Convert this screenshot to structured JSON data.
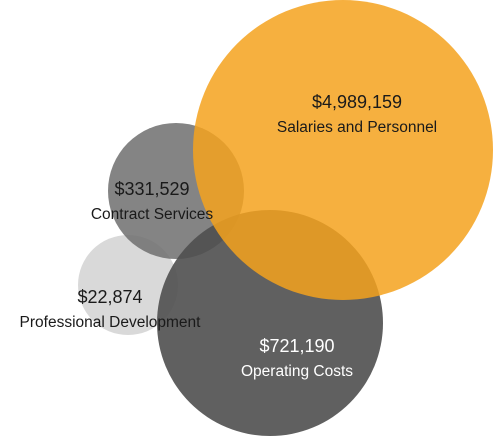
{
  "chart_data": {
    "type": "bubble",
    "categories": [
      "Salaries and Personnel",
      "Contract Services",
      "Professional Development",
      "Operating Costs"
    ],
    "values": [
      4989159,
      331529,
      22874,
      721190
    ],
    "value_labels": [
      "$4,989,159",
      "$331,529",
      "$22,874",
      "$721,190"
    ],
    "colors": [
      "#f5a21d",
      "#6e6e6e",
      "#cfcfcf",
      "#4f4f4f"
    ]
  }
}
